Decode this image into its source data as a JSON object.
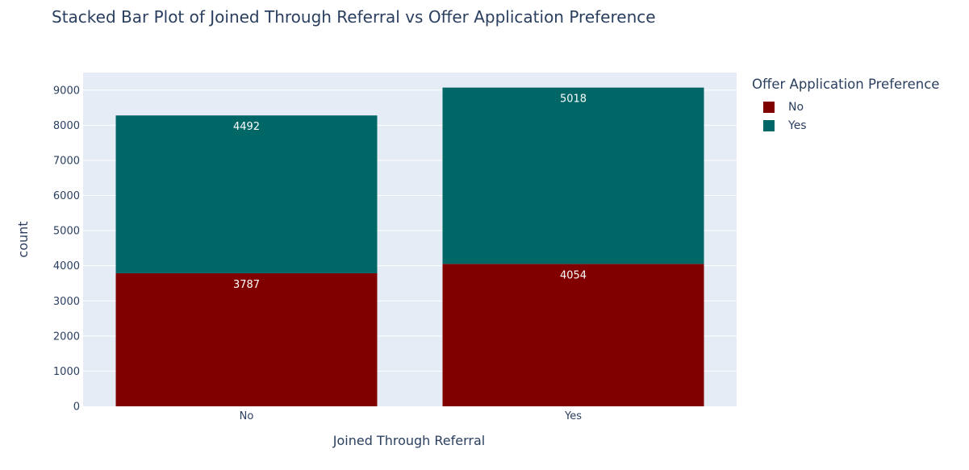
{
  "chart_data": {
    "type": "bar",
    "barmode": "stack",
    "title": "Stacked Bar Plot of Joined Through Referral vs Offer Application Preference",
    "xlabel": "Joined Through Referral",
    "ylabel": "count",
    "categories": [
      "No",
      "Yes"
    ],
    "series": [
      {
        "name": "No",
        "values": [
          3787,
          4054
        ],
        "color": "#800000"
      },
      {
        "name": "Yes",
        "values": [
          4492,
          5018
        ],
        "color": "#006666"
      }
    ],
    "ylim": [
      0,
      9500
    ],
    "yticks": [
      0,
      1000,
      2000,
      3000,
      4000,
      5000,
      6000,
      7000,
      8000,
      9000
    ],
    "grid": true,
    "legend_title": "Offer Application Preference",
    "legend_position": "top-right",
    "plot_bgcolor": "#e5ecf6"
  }
}
